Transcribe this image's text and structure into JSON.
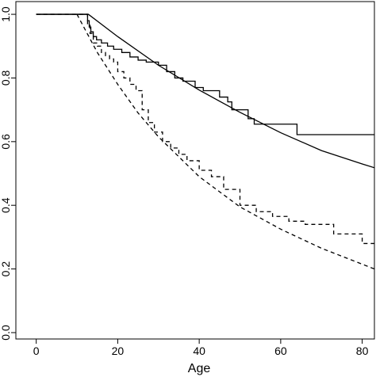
{
  "chart_data": {
    "type": "line",
    "title": "",
    "xlabel": "Age",
    "ylabel": "",
    "xlim": [
      -5,
      83
    ],
    "ylim": [
      -0.02,
      1.04
    ],
    "grid": false,
    "legend": "none",
    "xticks": [
      0,
      20,
      40,
      60,
      80
    ],
    "xtick_labels": [
      "0",
      "20",
      "40",
      "60",
      "80"
    ],
    "yticks": [
      0.0,
      0.2,
      0.4,
      0.6,
      0.8,
      1.0
    ],
    "ytick_labels": [
      "0.0",
      "0.2",
      "0.4",
      "0.6",
      "0.8",
      "1.0"
    ],
    "series": [
      {
        "style": "solid",
        "shape": "smooth",
        "x": [
          0,
          12.8,
          20,
          30,
          40,
          50,
          60,
          70,
          80,
          83
        ],
        "y": [
          1.0,
          1.0,
          0.93,
          0.84,
          0.762,
          0.692,
          0.628,
          0.572,
          0.53,
          0.518
        ]
      },
      {
        "style": "solid",
        "shape": "step",
        "x": [
          0,
          12.6,
          13.0,
          13.4,
          14.0,
          14.8,
          16.0,
          17.5,
          19.0,
          21.0,
          23.0,
          25.0,
          27.0,
          30.0,
          32.0,
          34.0,
          36.0,
          39.0,
          41.0,
          45.0,
          47.0,
          48.0,
          52.0,
          53.5,
          64.0,
          83.0
        ],
        "y": [
          1.0,
          0.98,
          0.96,
          0.945,
          0.93,
          0.92,
          0.91,
          0.9,
          0.89,
          0.88,
          0.866,
          0.856,
          0.85,
          0.84,
          0.82,
          0.8,
          0.79,
          0.77,
          0.76,
          0.74,
          0.725,
          0.7,
          0.672,
          0.655,
          0.622,
          0.622
        ]
      },
      {
        "style": "dashed",
        "shape": "smooth",
        "x": [
          10,
          15,
          20,
          25,
          30,
          40,
          50,
          60,
          70,
          80,
          83
        ],
        "y": [
          1.0,
          0.88,
          0.78,
          0.69,
          0.615,
          0.49,
          0.395,
          0.325,
          0.265,
          0.215,
          0.2
        ]
      },
      {
        "style": "dashed",
        "shape": "step",
        "x": [
          0,
          12.6,
          13.2,
          14.0,
          15.0,
          16.0,
          17.0,
          18.0,
          19.0,
          20.0,
          21.5,
          23.0,
          24.5,
          26.0,
          27.5,
          29.0,
          31.0,
          33.0,
          35.0,
          37.0,
          40.0,
          43.0,
          46.0,
          50.0,
          54.0,
          58.0,
          62.0,
          66.0,
          73.0,
          80.0,
          83.0
        ],
        "y": [
          1.0,
          0.97,
          0.94,
          0.91,
          0.9,
          0.88,
          0.87,
          0.86,
          0.85,
          0.82,
          0.8,
          0.78,
          0.76,
          0.7,
          0.66,
          0.63,
          0.6,
          0.58,
          0.56,
          0.54,
          0.51,
          0.49,
          0.45,
          0.4,
          0.38,
          0.365,
          0.35,
          0.34,
          0.31,
          0.28,
          0.28
        ]
      }
    ]
  }
}
